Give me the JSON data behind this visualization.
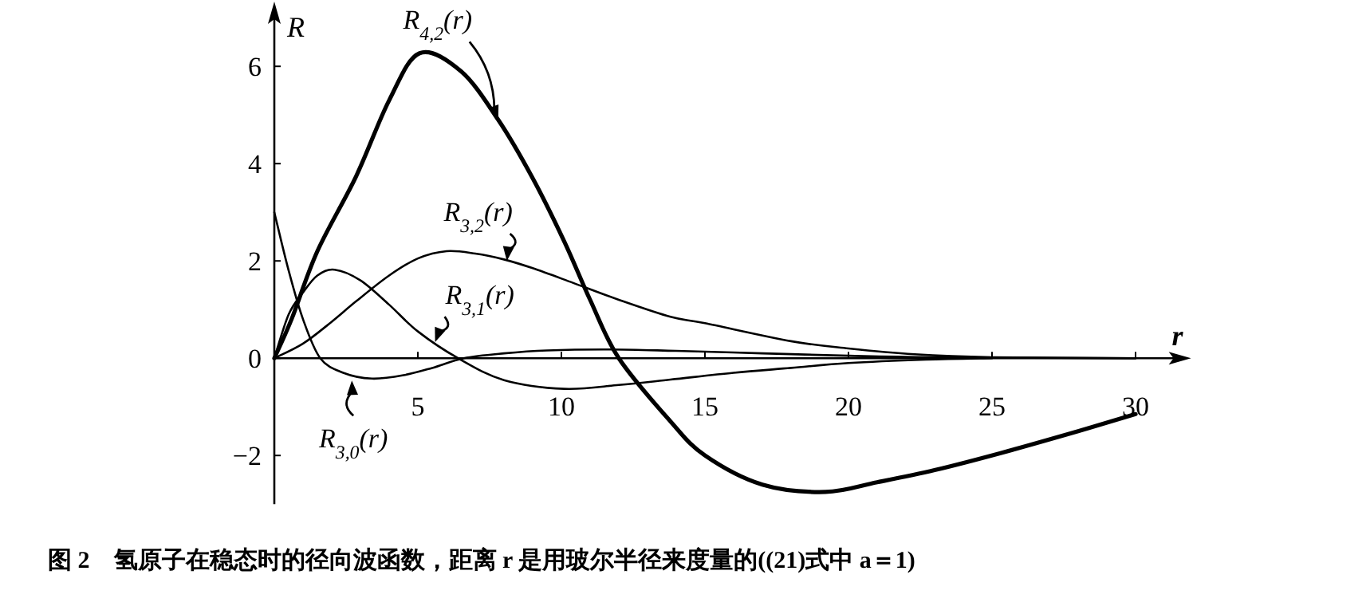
{
  "chart_data": {
    "type": "line",
    "xlabel": "r",
    "ylabel": "R",
    "xlim": [
      0,
      31.6
    ],
    "ylim": [
      -3,
      7.2
    ],
    "xticks": [
      {
        "value": 0,
        "label": null
      },
      5,
      10,
      15,
      20,
      25,
      30
    ],
    "yticks": [
      -2,
      0,
      2,
      4,
      6
    ],
    "series": [
      {
        "color": "#000000",
        "x": [
          0,
          0.6,
          1.5,
          2.85,
          4,
          5.06,
          6.5,
          7.8,
          9,
          10.1,
          11,
          12,
          13.8,
          15,
          17,
          19.2,
          21,
          23,
          25.3,
          28,
          30
        ],
        "values": [
          0,
          0.8,
          2.2,
          3.74,
          5.3,
          6.27,
          5.9,
          4.9,
          3.7,
          2.4,
          1.2,
          0,
          -1.3,
          -2.0,
          -2.6,
          -2.75,
          -2.55,
          -2.3,
          -1.95,
          -1.5,
          -1.15
        ]
      },
      {
        "color": "#000000",
        "x": [
          0,
          1,
          2,
          2.85,
          4,
          5,
          6,
          7,
          8,
          9,
          10.4,
          12,
          13.8,
          15,
          18,
          20,
          22.3,
          25,
          30
        ],
        "values": [
          0,
          0.3,
          0.75,
          1.17,
          1.7,
          2.05,
          2.2,
          2.15,
          2.03,
          1.85,
          1.55,
          1.2,
          0.85,
          0.72,
          0.35,
          0.2,
          0.08,
          0.02,
          0
        ]
      },
      {
        "color": "#000000",
        "x": [
          0,
          0.5,
          1,
          1.5,
          2.1,
          3,
          4,
          5,
          6.4,
          8,
          10.1,
          12,
          13.8,
          16,
          18,
          20,
          22.7,
          25
        ],
        "values": [
          0,
          0.9,
          1.35,
          1.7,
          1.82,
          1.6,
          1.1,
          0.55,
          0,
          -0.45,
          -0.63,
          -0.55,
          -0.44,
          -0.3,
          -0.2,
          -0.1,
          -0.03,
          0
        ]
      },
      {
        "color": "#000000",
        "x": [
          0,
          0.5,
          1,
          1.6,
          2.4,
          3.4,
          4.5,
          5.5,
          6.6,
          8,
          9.5,
          11.7,
          14,
          17,
          20,
          23,
          30
        ],
        "values": [
          3.0,
          1.8,
          0.8,
          0,
          -0.3,
          -0.42,
          -0.35,
          -0.2,
          0,
          0.1,
          0.16,
          0.18,
          0.15,
          0.1,
          0.05,
          0.02,
          0
        ]
      }
    ],
    "annotations": [
      {
        "text": "R$_{4,2}$(r)",
        "x": 7.8,
        "y": 4.9
      },
      {
        "text": "R$_{3,2}$(r)",
        "x": 8.1,
        "y": 2.0
      },
      {
        "text": "R$_{3,1}$(r)",
        "x": 5.6,
        "y": 0.33
      },
      {
        "text": "R$_{3,0}$(r)",
        "x": 2.7,
        "y": -0.46
      },
      "图 2　氢原子在稳态时的径向波函数，距离 r 是用玻尔半径来度量的((21)式中 a＝1)"
    ]
  }
}
